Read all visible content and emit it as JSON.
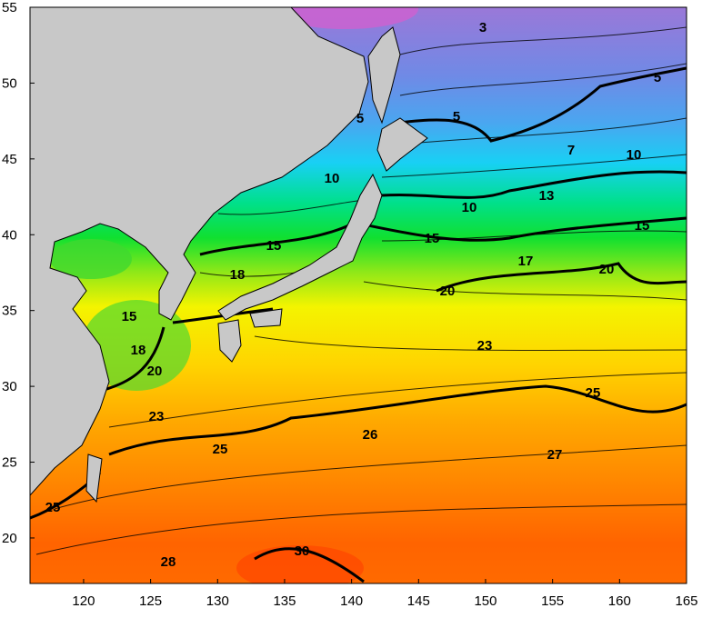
{
  "map": {
    "xlim": [
      116,
      165
    ],
    "ylim": [
      17,
      55
    ],
    "xticks": [
      120,
      125,
      130,
      135,
      140,
      145,
      150,
      155,
      160,
      165
    ],
    "yticks": [
      20,
      25,
      30,
      35,
      40,
      45,
      50,
      55
    ],
    "contour_labels": [
      3,
      5,
      5,
      5,
      7,
      10,
      10,
      10,
      13,
      15,
      15,
      15,
      17,
      18,
      20,
      20,
      15,
      18,
      20,
      23,
      25,
      23,
      25,
      26,
      27,
      25,
      28,
      30
    ]
  }
}
